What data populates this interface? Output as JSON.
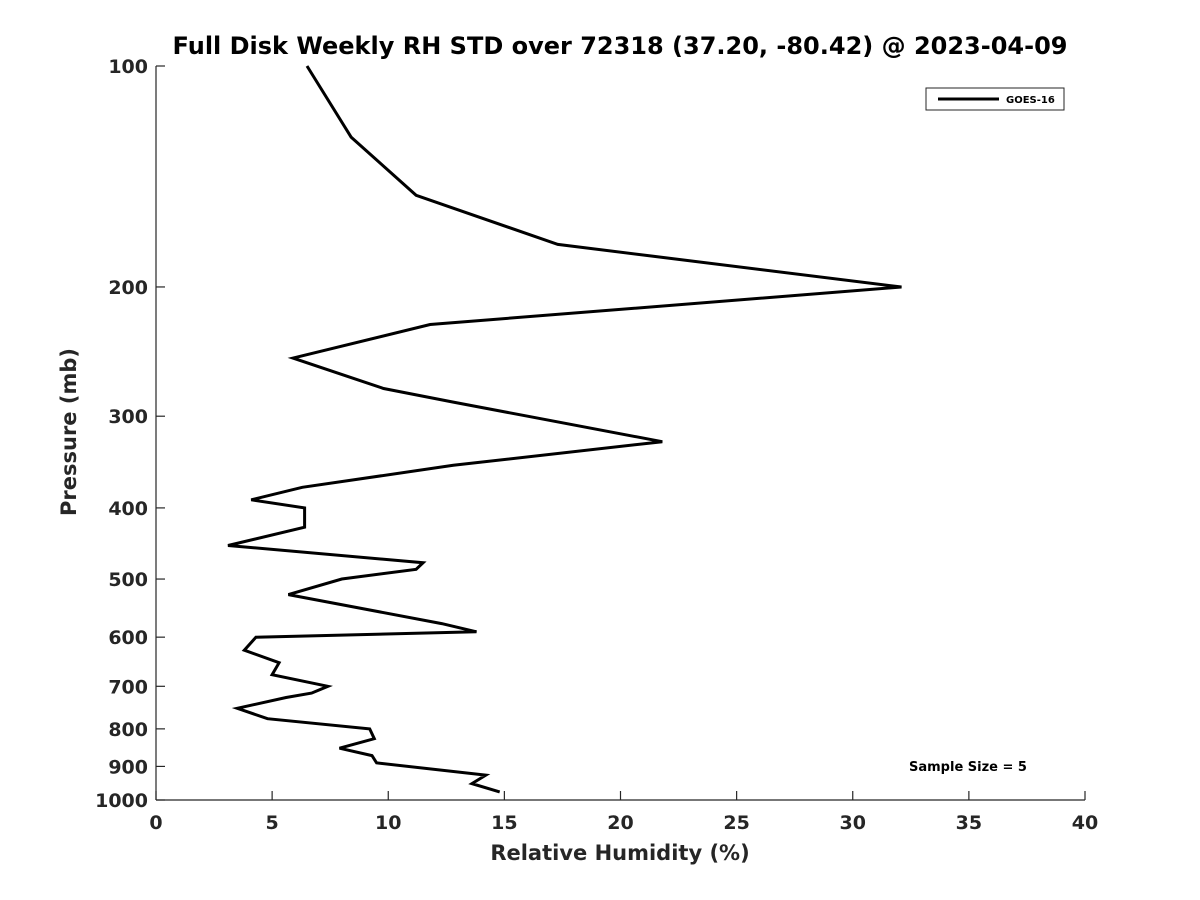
{
  "chart_data": {
    "type": "line",
    "title": "Full Disk Weekly RH STD over 72318 (37.20, -80.42) @ 2023-04-09",
    "xlabel": "Relative Humidity (%)",
    "ylabel": "Pressure (mb)",
    "xlim": [
      0,
      40
    ],
    "ylim": [
      100,
      1000
    ],
    "yscale": "log",
    "y_reversed": true,
    "x_ticks": [
      0,
      5,
      10,
      15,
      20,
      25,
      30,
      35,
      40
    ],
    "y_ticks": [
      100,
      200,
      300,
      400,
      500,
      600,
      700,
      800,
      900,
      1000
    ],
    "grid": false,
    "legend_position": "top-right",
    "annotation": "Sample Size = 5",
    "series": [
      {
        "name": "GOES-16",
        "color": "#000000",
        "points": [
          {
            "x": 6.5,
            "y": 100
          },
          {
            "x": 8.4,
            "y": 125
          },
          {
            "x": 11.2,
            "y": 150
          },
          {
            "x": 17.3,
            "y": 175
          },
          {
            "x": 32.1,
            "y": 200
          },
          {
            "x": 11.8,
            "y": 225
          },
          {
            "x": 5.9,
            "y": 250
          },
          {
            "x": 9.8,
            "y": 275
          },
          {
            "x": 12.8,
            "y": 287
          },
          {
            "x": 16.0,
            "y": 300
          },
          {
            "x": 21.8,
            "y": 325
          },
          {
            "x": 12.8,
            "y": 350
          },
          {
            "x": 6.3,
            "y": 375
          },
          {
            "x": 4.1,
            "y": 390
          },
          {
            "x": 6.4,
            "y": 400
          },
          {
            "x": 6.4,
            "y": 425
          },
          {
            "x": 3.1,
            "y": 450
          },
          {
            "x": 11.5,
            "y": 475
          },
          {
            "x": 11.2,
            "y": 485
          },
          {
            "x": 8.0,
            "y": 500
          },
          {
            "x": 5.7,
            "y": 525
          },
          {
            "x": 12.3,
            "y": 575
          },
          {
            "x": 13.8,
            "y": 590
          },
          {
            "x": 4.3,
            "y": 600
          },
          {
            "x": 3.8,
            "y": 625
          },
          {
            "x": 5.3,
            "y": 650
          },
          {
            "x": 5.0,
            "y": 675
          },
          {
            "x": 7.4,
            "y": 700
          },
          {
            "x": 6.7,
            "y": 715
          },
          {
            "x": 5.6,
            "y": 725
          },
          {
            "x": 3.5,
            "y": 750
          },
          {
            "x": 4.8,
            "y": 775
          },
          {
            "x": 9.2,
            "y": 800
          },
          {
            "x": 9.4,
            "y": 825
          },
          {
            "x": 7.9,
            "y": 850
          },
          {
            "x": 9.3,
            "y": 870
          },
          {
            "x": 9.5,
            "y": 890
          },
          {
            "x": 14.2,
            "y": 925
          },
          {
            "x": 13.6,
            "y": 950
          },
          {
            "x": 14.8,
            "y": 975
          }
        ]
      }
    ]
  }
}
